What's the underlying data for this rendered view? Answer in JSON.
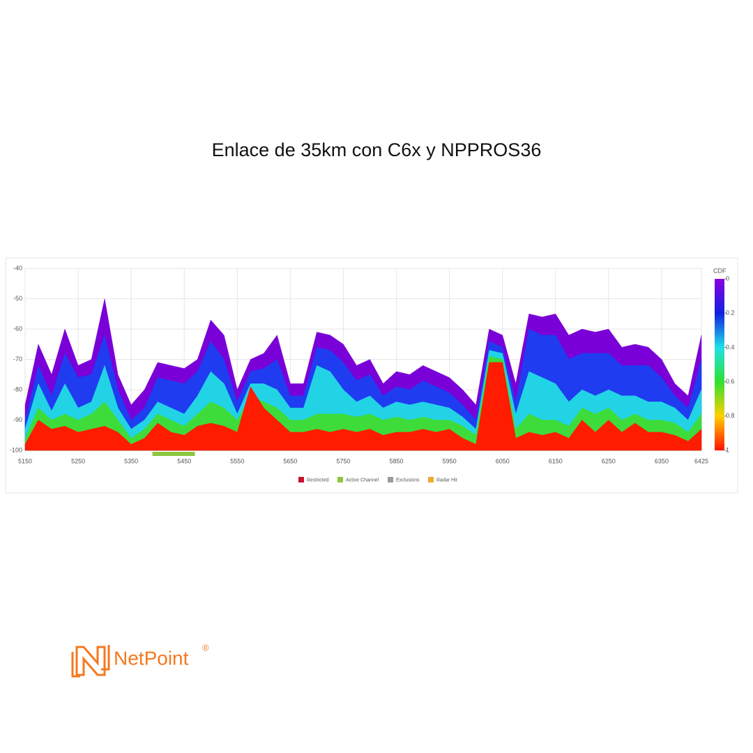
{
  "title": "Enlace de 35km con C6x y NPPROS36",
  "brand": {
    "name": "NetPoint",
    "mark": "®"
  },
  "chart_data": {
    "type": "spectrum",
    "x": [
      5150,
      5175,
      5200,
      5225,
      5250,
      5275,
      5300,
      5325,
      5350,
      5375,
      5400,
      5425,
      5450,
      5475,
      5500,
      5525,
      5550,
      5575,
      5600,
      5625,
      5650,
      5675,
      5700,
      5725,
      5750,
      5775,
      5800,
      5825,
      5850,
      5875,
      5900,
      5925,
      5950,
      5975,
      6000,
      6025,
      6050,
      6075,
      6100,
      6125,
      6150,
      6175,
      6200,
      6225,
      6250,
      6275,
      6300,
      6325,
      6350,
      6375,
      6400,
      6425
    ],
    "series": [
      {
        "color": "#7a00d8",
        "values": [
          -85,
          -65,
          -75,
          -60,
          -72,
          -70,
          -50,
          -75,
          -85,
          -80,
          -71,
          -72,
          -73,
          -70,
          -57,
          -62,
          -80,
          -70,
          -68,
          -62,
          -78,
          -78,
          -61,
          -62,
          -65,
          -72,
          -70,
          -78,
          -74,
          -75,
          -72,
          -74,
          -76,
          -80,
          -85,
          -60,
          -62,
          -78,
          -55,
          -56,
          -55,
          -62,
          -60,
          -61,
          -60,
          -66,
          -65,
          -66,
          -70,
          -78,
          -82,
          -62
        ]
      },
      {
        "color": "#1f3cf0",
        "values": [
          -90,
          -72,
          -82,
          -68,
          -76,
          -75,
          -62,
          -80,
          -90,
          -86,
          -76,
          -77,
          -78,
          -74,
          -64,
          -70,
          -84,
          -74,
          -73,
          -70,
          -82,
          -82,
          -66,
          -67,
          -71,
          -77,
          -75,
          -82,
          -79,
          -80,
          -77,
          -79,
          -81,
          -85,
          -90,
          -64,
          -66,
          -84,
          -60,
          -62,
          -62,
          -70,
          -68,
          -68,
          -68,
          -72,
          -72,
          -72,
          -76,
          -82,
          -86,
          -70
        ]
      },
      {
        "color": "#22d3e6",
        "values": [
          -93,
          -78,
          -87,
          -78,
          -86,
          -84,
          -72,
          -86,
          -93,
          -90,
          -84,
          -86,
          -88,
          -82,
          -74,
          -78,
          -88,
          -78,
          -78,
          -80,
          -86,
          -86,
          -72,
          -74,
          -80,
          -84,
          -82,
          -86,
          -84,
          -85,
          -84,
          -85,
          -86,
          -89,
          -93,
          -67,
          -68,
          -88,
          -74,
          -76,
          -78,
          -84,
          -80,
          -82,
          -80,
          -82,
          -82,
          -84,
          -84,
          -86,
          -90,
          -80
        ]
      },
      {
        "color": "#3ddc3a",
        "values": [
          -96,
          -86,
          -90,
          -88,
          -90,
          -88,
          -84,
          -90,
          -96,
          -93,
          -88,
          -90,
          -92,
          -88,
          -84,
          -86,
          -90,
          -82,
          -84,
          -86,
          -90,
          -90,
          -88,
          -88,
          -88,
          -89,
          -88,
          -90,
          -89,
          -90,
          -89,
          -90,
          -90,
          -92,
          -95,
          -69,
          -70,
          -93,
          -88,
          -90,
          -90,
          -92,
          -86,
          -88,
          -86,
          -90,
          -88,
          -90,
          -90,
          -91,
          -94,
          -88
        ]
      },
      {
        "color": "#ff1c00",
        "values": [
          -98,
          -90,
          -93,
          -92,
          -94,
          -93,
          -92,
          -94,
          -98,
          -96,
          -91,
          -94,
          -95,
          -92,
          -91,
          -92,
          -94,
          -79,
          -86,
          -90,
          -94,
          -94,
          -93,
          -94,
          -93,
          -94,
          -93,
          -95,
          -94,
          -94,
          -93,
          -94,
          -93,
          -96,
          -98,
          -71,
          -71,
          -96,
          -94,
          -95,
          -94,
          -96,
          -90,
          -94,
          -90,
          -94,
          -91,
          -94,
          -94,
          -95,
          -97,
          -93
        ]
      }
    ],
    "xlim": [
      5150,
      6425
    ],
    "xticks": [
      5150,
      5250,
      5350,
      5450,
      5550,
      5650,
      5750,
      5850,
      5950,
      6050,
      6150,
      6250,
      6350,
      6425
    ],
    "ylim": [
      -100,
      -40
    ],
    "yticks": [
      -40,
      -50,
      -60,
      -70,
      -80,
      -90,
      -100
    ],
    "grid": true,
    "colorbar": {
      "title": "CDF",
      "ticks": [
        0,
        0.2,
        0.4,
        0.6,
        0.8,
        1
      ],
      "colors": [
        "#8a00e0",
        "#1020e0",
        "#20e0e8",
        "#30e030",
        "#ffd000",
        "#ff1000"
      ]
    },
    "active_channel": {
      "range": [
        5390,
        5470
      ],
      "color": "#8dc63f"
    },
    "legend": [
      {
        "name": "Restricted",
        "color": "#c8102e"
      },
      {
        "name": "Active Channel",
        "color": "#8dc63f"
      },
      {
        "name": "Exclusions",
        "color": "#9a9a9a"
      },
      {
        "name": "Radar Hit",
        "color": "#f0a830"
      }
    ]
  }
}
